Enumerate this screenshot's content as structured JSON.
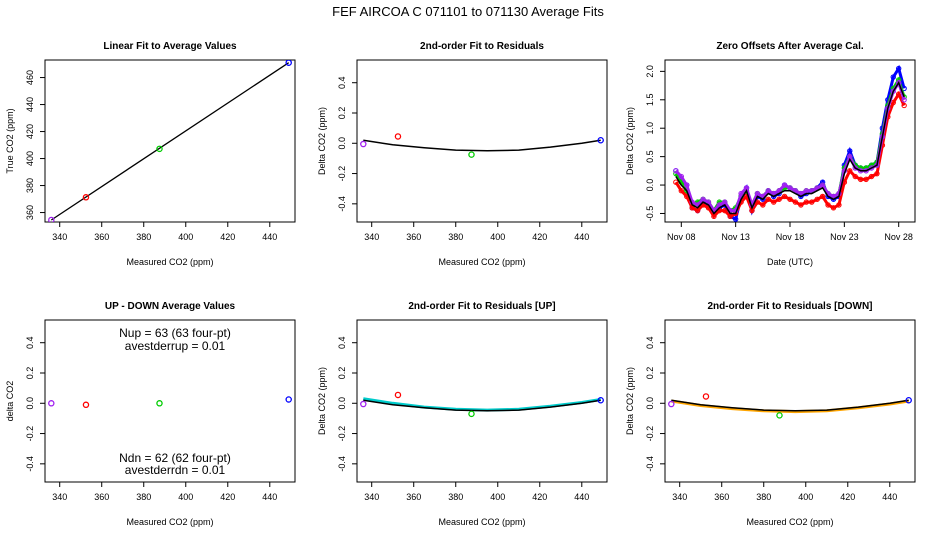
{
  "figure_title": "FEF   AIRCOA C   071101 to 071130   Average Fits",
  "chart_data": [
    {
      "id": "p1",
      "type": "scatter",
      "title": "Linear Fit to Average Values",
      "xlabel": "Measured CO2 (ppm)",
      "ylabel": "True CO2 (ppm)",
      "xlim": [
        333,
        452
      ],
      "ylim": [
        353,
        473
      ],
      "xticks": [
        "340",
        "360",
        "380",
        "400",
        "420",
        "440"
      ],
      "xtick_values": [
        340,
        360,
        380,
        400,
        420,
        440
      ],
      "yticks": [
        "360",
        "380",
        "400",
        "420",
        "440",
        "460"
      ],
      "ytick_values": [
        360,
        380,
        400,
        420,
        440,
        460
      ],
      "fit_line": {
        "color": "#000000",
        "x": [
          336,
          449
        ],
        "y": [
          354.5,
          471
        ]
      },
      "points": [
        {
          "x": 336,
          "y": 354.5,
          "color": "#a020f0"
        },
        {
          "x": 352.5,
          "y": 371.3,
          "color": "#ff0000"
        },
        {
          "x": 387.5,
          "y": 407.2,
          "color": "#00cc00"
        },
        {
          "x": 449,
          "y": 471,
          "color": "#0000ff"
        }
      ]
    },
    {
      "id": "p2",
      "type": "scatter",
      "title": "2nd-order Fit to Residuals",
      "xlabel": "Measured CO2 (ppm)",
      "ylabel": "Delta CO2 (ppm)",
      "xlim": [
        333,
        452
      ],
      "ylim": [
        -0.52,
        0.55
      ],
      "xticks": [
        "340",
        "360",
        "380",
        "400",
        "420",
        "440"
      ],
      "xtick_values": [
        340,
        360,
        380,
        400,
        420,
        440
      ],
      "yticks": [
        "-0.4",
        "-0.2",
        "0.0",
        "0.2",
        "0.4"
      ],
      "ytick_values": [
        -0.4,
        -0.2,
        0,
        0.2,
        0.4
      ],
      "curve": {
        "color": "#000000",
        "x": [
          336,
          350,
          365,
          380,
          395,
          410,
          425,
          440,
          449
        ],
        "y": [
          0.02,
          -0.01,
          -0.03,
          -0.045,
          -0.05,
          -0.045,
          -0.025,
          0.0,
          0.02
        ]
      },
      "points": [
        {
          "x": 336,
          "y": -0.005,
          "color": "#a020f0"
        },
        {
          "x": 352.5,
          "y": 0.045,
          "color": "#ff0000"
        },
        {
          "x": 387.5,
          "y": -0.075,
          "color": "#00cc00"
        },
        {
          "x": 449,
          "y": 0.02,
          "color": "#0000ff"
        }
      ]
    },
    {
      "id": "p3",
      "type": "line",
      "title": "Zero Offsets After Average Cal.",
      "xlabel": "Date (UTC)",
      "ylabel": "Delta CO2 (ppm)",
      "xlim": [
        6.5,
        29.5
      ],
      "ylim": [
        -0.65,
        2.2
      ],
      "xticks": [
        "Nov 08",
        "Nov 13",
        "Nov 18",
        "Nov 23",
        "Nov 28"
      ],
      "xtick_values": [
        8,
        13,
        18,
        23,
        28
      ],
      "yticks": [
        "-0.5",
        "0.0",
        "0.5",
        "1.0",
        "1.5",
        "2.0"
      ],
      "ytick_values": [
        -0.5,
        0,
        0.5,
        1.0,
        1.5,
        2.0
      ],
      "x": [
        7.5,
        8.0,
        8.5,
        9.0,
        9.5,
        10.0,
        10.5,
        11.0,
        11.5,
        12.0,
        12.5,
        13.0,
        13.5,
        14.0,
        14.5,
        15.0,
        15.5,
        16.0,
        16.5,
        17.0,
        17.5,
        18.0,
        18.5,
        19.0,
        19.5,
        20.0,
        20.5,
        21.0,
        21.5,
        22.0,
        22.5,
        23.0,
        23.5,
        24.0,
        24.5,
        25.0,
        25.5,
        26.0,
        26.5,
        27.0,
        27.5,
        28.0,
        28.5
      ],
      "series": [
        {
          "name": "blue",
          "color": "#0000ff",
          "values": [
            0.25,
            0.1,
            0.0,
            -0.4,
            -0.45,
            -0.3,
            -0.35,
            -0.5,
            -0.4,
            -0.35,
            -0.55,
            -0.6,
            -0.2,
            -0.05,
            -0.45,
            -0.2,
            -0.25,
            -0.1,
            -0.2,
            -0.15,
            0.0,
            -0.05,
            -0.1,
            -0.2,
            -0.15,
            -0.1,
            -0.05,
            0.05,
            -0.2,
            -0.25,
            -0.2,
            0.35,
            0.6,
            0.35,
            0.3,
            0.3,
            0.35,
            0.4,
            1.0,
            1.5,
            1.9,
            2.05,
            1.7
          ]
        },
        {
          "name": "green",
          "color": "#00cc00",
          "values": [
            0.2,
            0.05,
            -0.1,
            -0.35,
            -0.3,
            -0.25,
            -0.3,
            -0.45,
            -0.3,
            -0.3,
            -0.45,
            -0.4,
            -0.2,
            -0.1,
            -0.35,
            -0.15,
            -0.2,
            -0.1,
            -0.15,
            -0.1,
            -0.05,
            -0.05,
            -0.1,
            -0.15,
            -0.1,
            -0.1,
            -0.05,
            0.0,
            -0.15,
            -0.2,
            -0.15,
            0.3,
            0.5,
            0.35,
            0.3,
            0.3,
            0.35,
            0.4,
            0.9,
            1.4,
            1.7,
            1.85,
            1.55
          ]
        },
        {
          "name": "red",
          "color": "#ff0000",
          "values": [
            0.05,
            -0.1,
            -0.2,
            -0.4,
            -0.45,
            -0.35,
            -0.4,
            -0.55,
            -0.45,
            -0.45,
            -0.55,
            -0.5,
            -0.3,
            -0.2,
            -0.45,
            -0.3,
            -0.35,
            -0.25,
            -0.3,
            -0.25,
            -0.2,
            -0.25,
            -0.3,
            -0.35,
            -0.3,
            -0.3,
            -0.25,
            -0.2,
            -0.35,
            -0.4,
            -0.35,
            0.05,
            0.25,
            0.15,
            0.1,
            0.1,
            0.15,
            0.2,
            0.7,
            1.2,
            1.45,
            1.6,
            1.4
          ]
        },
        {
          "name": "purple",
          "color": "#a020f0",
          "values": [
            0.25,
            0.15,
            0.0,
            -0.3,
            -0.35,
            -0.25,
            -0.3,
            -0.45,
            -0.35,
            -0.3,
            -0.45,
            -0.45,
            -0.15,
            -0.05,
            -0.35,
            -0.15,
            -0.2,
            -0.1,
            -0.15,
            -0.1,
            0.0,
            -0.05,
            -0.1,
            -0.15,
            -0.1,
            -0.1,
            -0.05,
            0.0,
            -0.15,
            -0.2,
            -0.15,
            0.25,
            0.5,
            0.3,
            0.25,
            0.25,
            0.3,
            0.35,
            0.85,
            1.35,
            1.65,
            1.8,
            1.5
          ]
        },
        {
          "name": "black",
          "color": "#000000",
          "values": [
            0.15,
            0.0,
            -0.1,
            -0.35,
            -0.4,
            -0.3,
            -0.35,
            -0.5,
            -0.4,
            -0.35,
            -0.5,
            -0.5,
            -0.25,
            -0.1,
            -0.4,
            -0.2,
            -0.25,
            -0.15,
            -0.2,
            -0.15,
            -0.1,
            -0.1,
            -0.15,
            -0.2,
            -0.15,
            -0.15,
            -0.1,
            -0.05,
            -0.2,
            -0.25,
            -0.2,
            0.2,
            0.45,
            0.3,
            0.25,
            0.25,
            0.3,
            0.35,
            0.85,
            1.35,
            1.65,
            1.8,
            1.55
          ]
        }
      ]
    },
    {
      "id": "p4",
      "type": "scatter",
      "title": "UP - DOWN Average Values",
      "xlabel": "Measured CO2 (ppm)",
      "ylabel": "delta CO2",
      "xlim": [
        333,
        452
      ],
      "ylim": [
        -0.52,
        0.55
      ],
      "xticks": [
        "340",
        "360",
        "380",
        "400",
        "420",
        "440"
      ],
      "xtick_values": [
        340,
        360,
        380,
        400,
        420,
        440
      ],
      "yticks": [
        "-0.4",
        "-0.2",
        "0.0",
        "0.2",
        "0.4"
      ],
      "ytick_values": [
        -0.4,
        -0.2,
        0,
        0.2,
        0.4
      ],
      "annotations": {
        "nup": "Nup = 63 (63 four-pt)",
        "avestderrup": "avestderrup =  0.01",
        "ndn": "Ndn = 62 (62 four-pt)",
        "avestderrdn": "avestderrdn =  0.01"
      },
      "points": [
        {
          "x": 336,
          "y": 0.0,
          "color": "#a020f0"
        },
        {
          "x": 352.5,
          "y": -0.01,
          "color": "#ff0000"
        },
        {
          "x": 387.5,
          "y": 0.0,
          "color": "#00cc00"
        },
        {
          "x": 449,
          "y": 0.025,
          "color": "#0000ff"
        }
      ]
    },
    {
      "id": "p5",
      "type": "scatter",
      "title": "2nd-order Fit to Residuals [UP]",
      "xlabel": "Measured CO2 (ppm)",
      "ylabel": "Delta CO2 (ppm)",
      "xlim": [
        333,
        452
      ],
      "ylim": [
        -0.52,
        0.55
      ],
      "xticks": [
        "340",
        "360",
        "380",
        "400",
        "420",
        "440"
      ],
      "xtick_values": [
        340,
        360,
        380,
        400,
        420,
        440
      ],
      "yticks": [
        "-0.4",
        "-0.2",
        "0.0",
        "0.2",
        "0.4"
      ],
      "ytick_values": [
        -0.4,
        -0.2,
        0,
        0.2,
        0.4
      ],
      "curve": {
        "color": "#000000",
        "x": [
          336,
          350,
          365,
          380,
          395,
          410,
          425,
          440,
          449
        ],
        "y": [
          0.02,
          -0.01,
          -0.03,
          -0.045,
          -0.05,
          -0.045,
          -0.025,
          0.0,
          0.02
        ]
      },
      "curve2": {
        "color": "#00cccc",
        "x": [
          336,
          350,
          365,
          380,
          395,
          410,
          425,
          440,
          449
        ],
        "y": [
          0.03,
          0.0,
          -0.025,
          -0.04,
          -0.045,
          -0.04,
          -0.02,
          0.005,
          0.025
        ]
      },
      "points": [
        {
          "x": 336,
          "y": -0.005,
          "color": "#a020f0"
        },
        {
          "x": 352.5,
          "y": 0.055,
          "color": "#ff0000"
        },
        {
          "x": 387.5,
          "y": -0.07,
          "color": "#00cc00"
        },
        {
          "x": 449,
          "y": 0.02,
          "color": "#0000ff"
        }
      ]
    },
    {
      "id": "p6",
      "type": "scatter",
      "title": "2nd-order Fit to Residuals [DOWN]",
      "xlabel": "Measured CO2 (ppm)",
      "ylabel": "Delta CO2 (ppm)",
      "xlim": [
        333,
        452
      ],
      "ylim": [
        -0.52,
        0.55
      ],
      "xticks": [
        "340",
        "360",
        "380",
        "400",
        "420",
        "440"
      ],
      "xtick_values": [
        340,
        360,
        380,
        400,
        420,
        440
      ],
      "yticks": [
        "-0.4",
        "-0.2",
        "0.0",
        "0.2",
        "0.4"
      ],
      "ytick_values": [
        -0.4,
        -0.2,
        0,
        0.2,
        0.4
      ],
      "curve": {
        "color": "#000000",
        "x": [
          336,
          350,
          365,
          380,
          395,
          410,
          425,
          440,
          449
        ],
        "y": [
          0.02,
          -0.01,
          -0.03,
          -0.045,
          -0.05,
          -0.045,
          -0.025,
          0.0,
          0.02
        ]
      },
      "curve2": {
        "color": "#ffa500",
        "x": [
          336,
          350,
          365,
          380,
          395,
          410,
          425,
          440,
          449
        ],
        "y": [
          0.015,
          -0.015,
          -0.035,
          -0.05,
          -0.055,
          -0.05,
          -0.03,
          -0.005,
          0.015
        ]
      },
      "points": [
        {
          "x": 336,
          "y": -0.005,
          "color": "#a020f0"
        },
        {
          "x": 352.5,
          "y": 0.045,
          "color": "#ff0000"
        },
        {
          "x": 387.5,
          "y": -0.08,
          "color": "#00cc00"
        },
        {
          "x": 449,
          "y": 0.02,
          "color": "#0000ff"
        }
      ]
    }
  ]
}
